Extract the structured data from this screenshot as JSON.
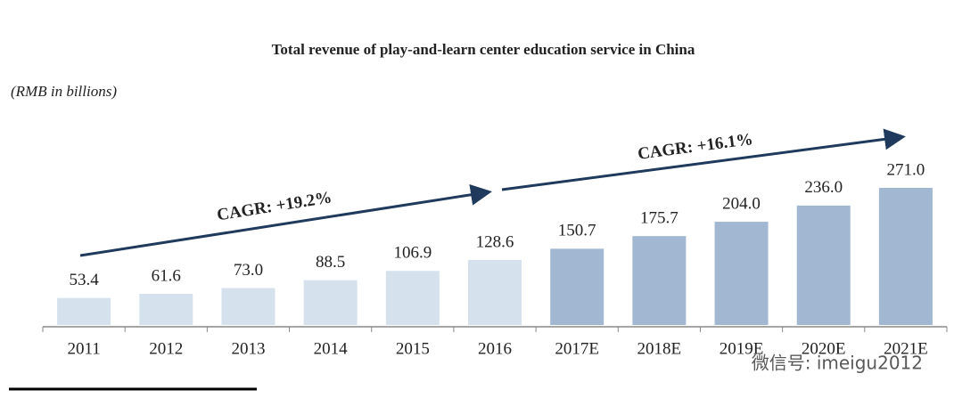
{
  "chart_data": {
    "type": "bar",
    "title": "Total revenue of play-and-learn center education service in China",
    "subtitle": "(RMB in billions)",
    "categories": [
      "2011",
      "2012",
      "2013",
      "2014",
      "2015",
      "2016",
      "2017E",
      "2018E",
      "2019E",
      "2020E",
      "2021E"
    ],
    "values": [
      53.4,
      61.6,
      73.0,
      88.5,
      106.9,
      128.6,
      150.7,
      175.7,
      204.0,
      236.0,
      271.0
    ],
    "value_labels": [
      "53.4",
      "61.6",
      "73.0",
      "88.5",
      "106.9",
      "128.6",
      "150.7",
      "175.7",
      "204.0",
      "236.0",
      "271.0"
    ],
    "colors": [
      "#d5e2ee",
      "#d5e2ee",
      "#d5e2ee",
      "#d5e2ee",
      "#d5e2ee",
      "#d5e2ee",
      "#a2b7d2",
      "#a2b7d2",
      "#a2b7d2",
      "#a2b7d2",
      "#a2b7d2"
    ],
    "annotations": [
      "CAGR: +19.2%",
      "CAGR: +16.1%"
    ],
    "watermark": "微信号: imeigu2012"
  }
}
